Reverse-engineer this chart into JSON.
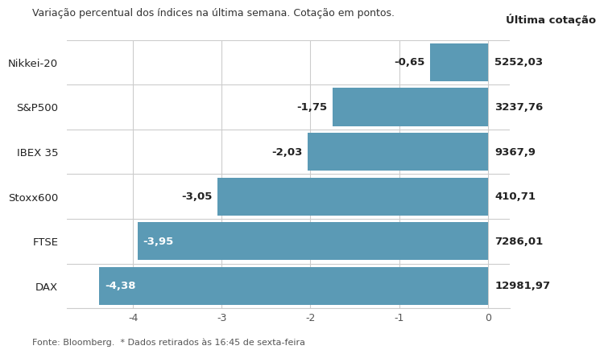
{
  "subtitle": "Variação percentual dos índices na última semana. Cotação em pontos.",
  "categories": [
    "Nikkei-20",
    "S&P500",
    "IBEX 35",
    "Stoxx600",
    "FTSE",
    "DAX"
  ],
  "values": [
    -0.65,
    -1.75,
    -2.03,
    -3.05,
    -3.95,
    -4.38
  ],
  "value_labels": [
    "-0,65",
    "-1,75",
    "-2,03",
    "-3,05",
    "-3,95",
    "-4,38"
  ],
  "last_quotes": [
    "5252,03",
    "3237,76",
    "9367,9",
    "410,71",
    "7286,01",
    "12981,97"
  ],
  "bar_color": "#5b9ab5",
  "text_color_inside": "#ffffff",
  "text_color_outside": "#222222",
  "background_color": "#ffffff",
  "grid_color": "#cccccc",
  "xlim": [
    -4.75,
    0.25
  ],
  "xticks": [
    -4,
    -3,
    -2,
    -1,
    0
  ],
  "last_quote_header": "Última cotação",
  "footer": "Fonte: Bloomberg.  * Dados retirados às 16:45 de sexta-feira",
  "subtitle_fontsize": 9.0,
  "category_fontsize": 9.5,
  "value_label_fontsize": 9.5,
  "last_quote_fontsize": 9.5,
  "footer_fontsize": 8.0,
  "inside_threshold": 3.5
}
